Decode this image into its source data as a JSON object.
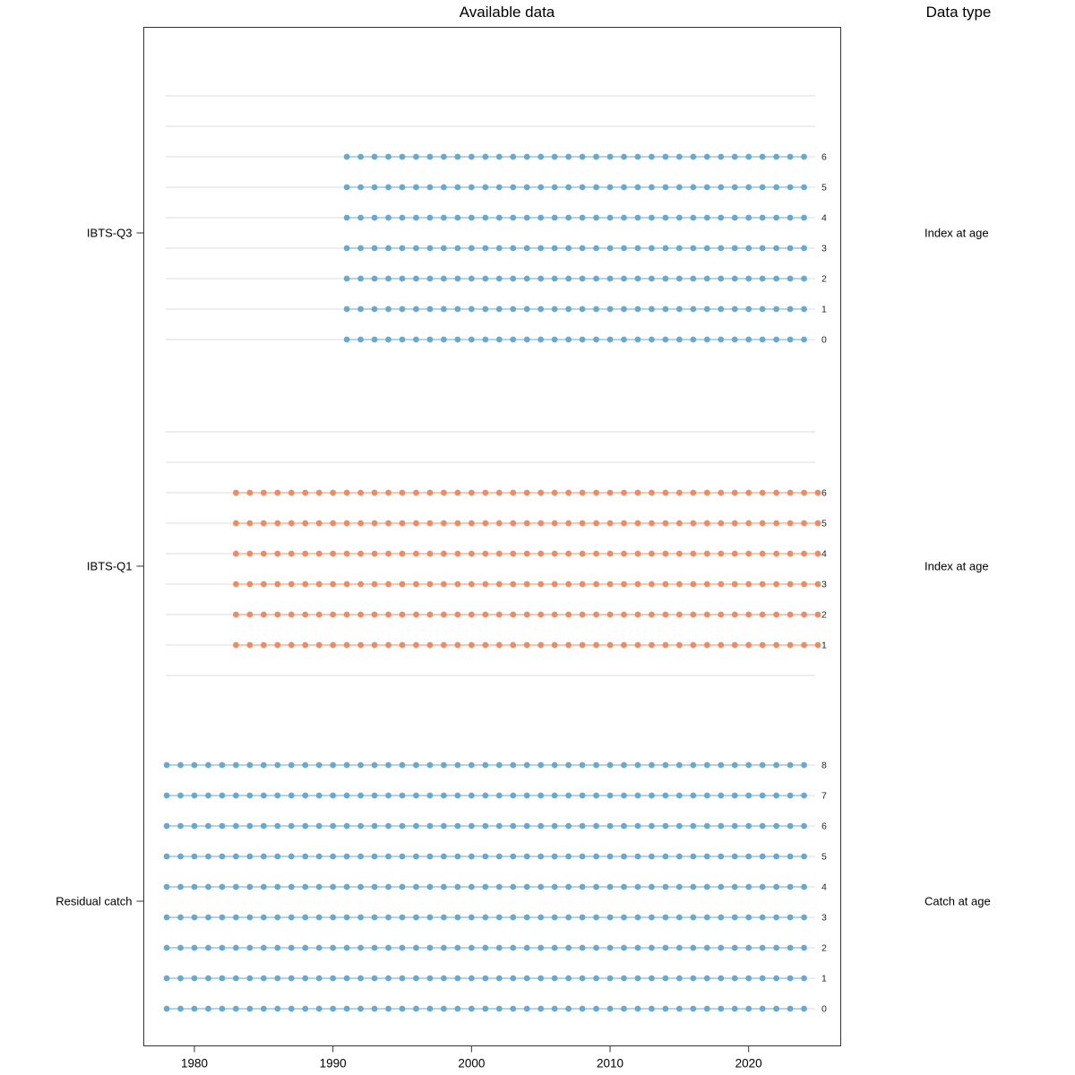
{
  "title": "Available data",
  "legend_header": "Data type",
  "chart_data": {
    "type": "scatter",
    "title": "Available data",
    "right_column_title": "Data type",
    "xlabel": "",
    "ylabel": "",
    "x_ticks": [
      1980,
      1990,
      2000,
      2010,
      2020
    ],
    "x_range": [
      1975.5,
      2026.5
    ],
    "grid": "light horizontal gridline per age slot",
    "age_slots_top_to_bottom": [
      8,
      7,
      6,
      5,
      4,
      3,
      2,
      1,
      0
    ],
    "fleets": [
      {
        "name": "IBTS-Q3",
        "data_type": "Index at age",
        "ages_with_data": [
          0,
          1,
          2,
          3,
          4,
          5,
          6
        ],
        "year_start": 1991,
        "year_end": 2024,
        "point_color": "#67a9cf",
        "line_color": "#b4d3e7"
      },
      {
        "name": "IBTS-Q1",
        "data_type": "Index at age",
        "ages_with_data": [
          1,
          2,
          3,
          4,
          5,
          6
        ],
        "year_start": 1983,
        "year_end": 2025,
        "point_color": "#ef8a62",
        "line_color": "#f9c6b1"
      },
      {
        "name": "Residual catch",
        "data_type": "Catch at age",
        "ages_with_data": [
          0,
          1,
          2,
          3,
          4,
          5,
          6,
          7,
          8
        ],
        "year_start": 1978,
        "year_end": 2024,
        "point_color": "#67a9cf",
        "line_color": "#b4d3e7"
      }
    ],
    "colors": {
      "border": "#333333",
      "gridline": "#e9e9e9",
      "text": "#000000",
      "age_label": "#222222"
    }
  }
}
